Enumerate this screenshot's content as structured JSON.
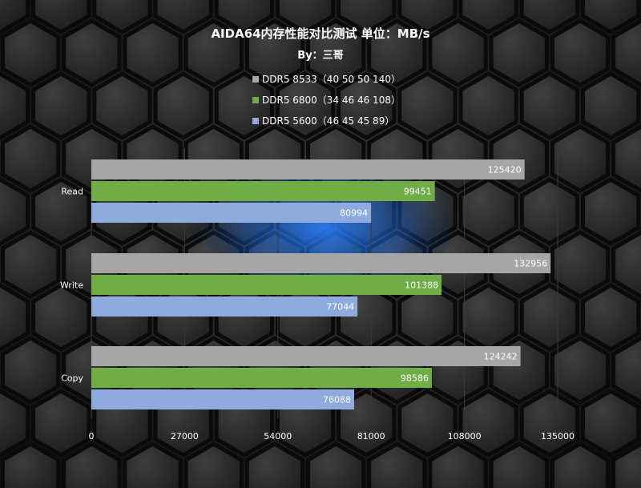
{
  "chart_data": {
    "type": "bar",
    "orientation": "horizontal",
    "title": "AIDA64内存性能对比测试 单位：MB/s",
    "subtitle": "By：三哥",
    "categories": [
      "Read",
      "Write",
      "Copy"
    ],
    "series": [
      {
        "name": "DDR5 8533（40 50 50 140）",
        "color": "#a6a6a6",
        "values": [
          125420,
          132956,
          124242
        ]
      },
      {
        "name": "DDR5 6800（34 46 46 108）",
        "color": "#70ad47",
        "values": [
          99451,
          101388,
          98586
        ]
      },
      {
        "name": "DDR5 5600（46 45 45 89）",
        "color": "#8faadc",
        "values": [
          80994,
          77044,
          76088
        ]
      }
    ],
    "xticks": [
      "0",
      "27000",
      "54000",
      "81000",
      "108000",
      "135000"
    ],
    "xlim": [
      0,
      135000
    ],
    "grid": true,
    "legend_position": "top"
  },
  "colors": {
    "background": "#1a1a1a",
    "hex_fill": "#2b2b2b",
    "hex_stroke": "#0a0a0a",
    "glow": "#1e6fd9",
    "grid": "#3a3a3a"
  }
}
